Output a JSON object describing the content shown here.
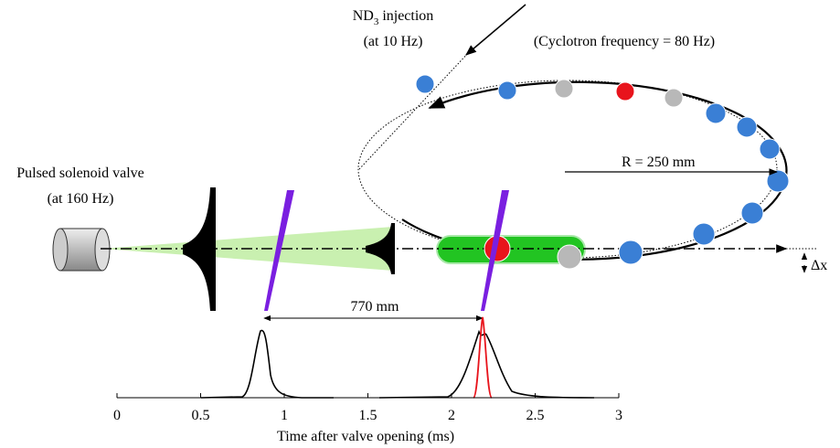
{
  "labels": {
    "injection": {
      "main": "ND",
      "subscript": "3",
      "rest": " injection"
    },
    "injection_rate": "(at 10 Hz)",
    "cyclotron": "(Cyclotron frequency = 80 Hz)",
    "radius": "R = 250 mm",
    "valve": "Pulsed solenoid valve",
    "valve_rate": "(at 160 Hz)",
    "distance": "770 mm",
    "offset": "Δx"
  },
  "time_axis": {
    "label": "Time after valve opening (ms)",
    "xlim": [
      0,
      3
    ],
    "xticks": [
      0,
      0.5,
      1,
      1.5,
      2,
      2.5,
      3
    ]
  }
}
